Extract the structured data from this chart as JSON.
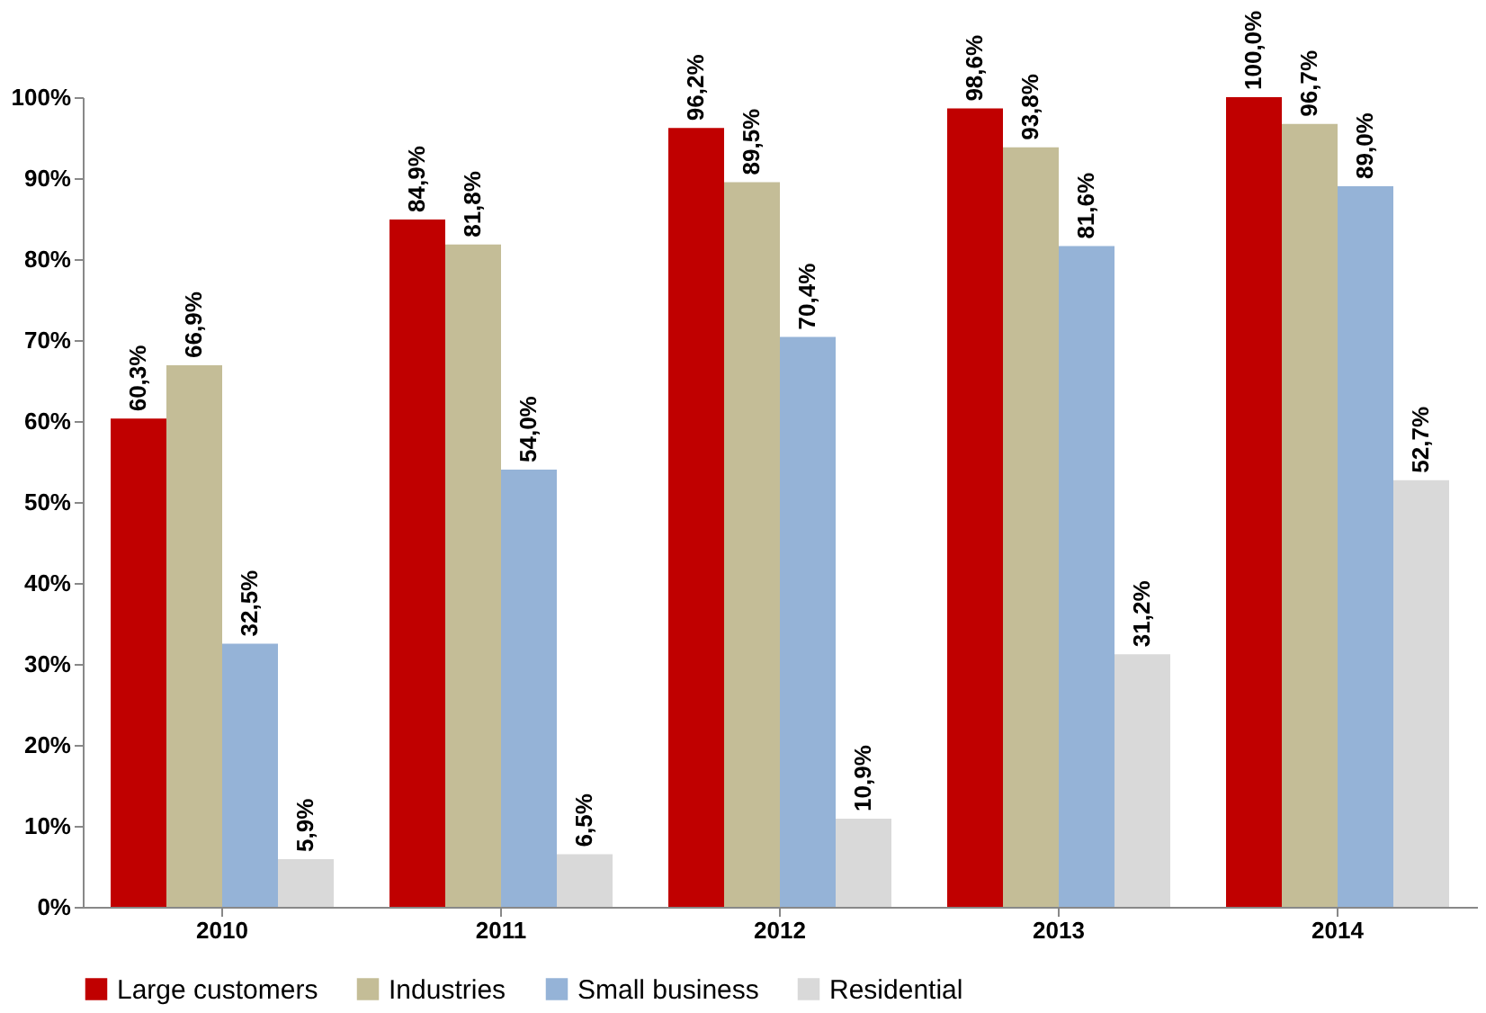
{
  "chart_data": {
    "type": "bar",
    "categories": [
      "2010",
      "2011",
      "2012",
      "2013",
      "2014"
    ],
    "series": [
      {
        "name": "Large customers",
        "color": "#c00000",
        "values": [
          60.3,
          84.9,
          96.2,
          98.6,
          100.0
        ],
        "value_labels": [
          "60,3%",
          "84,9%",
          "96,2%",
          "98,6%",
          "100,0%"
        ]
      },
      {
        "name": "Industries",
        "color": "#c4bd97",
        "values": [
          66.9,
          81.8,
          89.5,
          93.8,
          96.7
        ],
        "value_labels": [
          "66,9%",
          "81,8%",
          "89,5%",
          "93,8%",
          "96,7%"
        ]
      },
      {
        "name": "Small business",
        "color": "#95b3d7",
        "values": [
          32.5,
          54.0,
          70.4,
          81.6,
          89.0
        ],
        "value_labels": [
          "32,5%",
          "54,0%",
          "70,4%",
          "81,6%",
          "89,0%"
        ]
      },
      {
        "name": "Residential",
        "color": "#d9d9d9",
        "values": [
          5.9,
          6.5,
          10.9,
          31.2,
          52.7
        ],
        "value_labels": [
          "5,9%",
          "6,5%",
          "10,9%",
          "31,2%",
          "52,7%"
        ]
      }
    ],
    "ylim": [
      0,
      100
    ],
    "yticks": [
      {
        "value": 0,
        "label": "0%"
      },
      {
        "value": 10,
        "label": "10%"
      },
      {
        "value": 20,
        "label": "20%"
      },
      {
        "value": 30,
        "label": "30%"
      },
      {
        "value": 40,
        "label": "40%"
      },
      {
        "value": 50,
        "label": "50%"
      },
      {
        "value": 60,
        "label": "60%"
      },
      {
        "value": 70,
        "label": "70%"
      },
      {
        "value": 80,
        "label": "80%"
      },
      {
        "value": 90,
        "label": "90%"
      },
      {
        "value": 100,
        "label": "100%"
      }
    ],
    "grid": false,
    "legend": "bottom"
  }
}
